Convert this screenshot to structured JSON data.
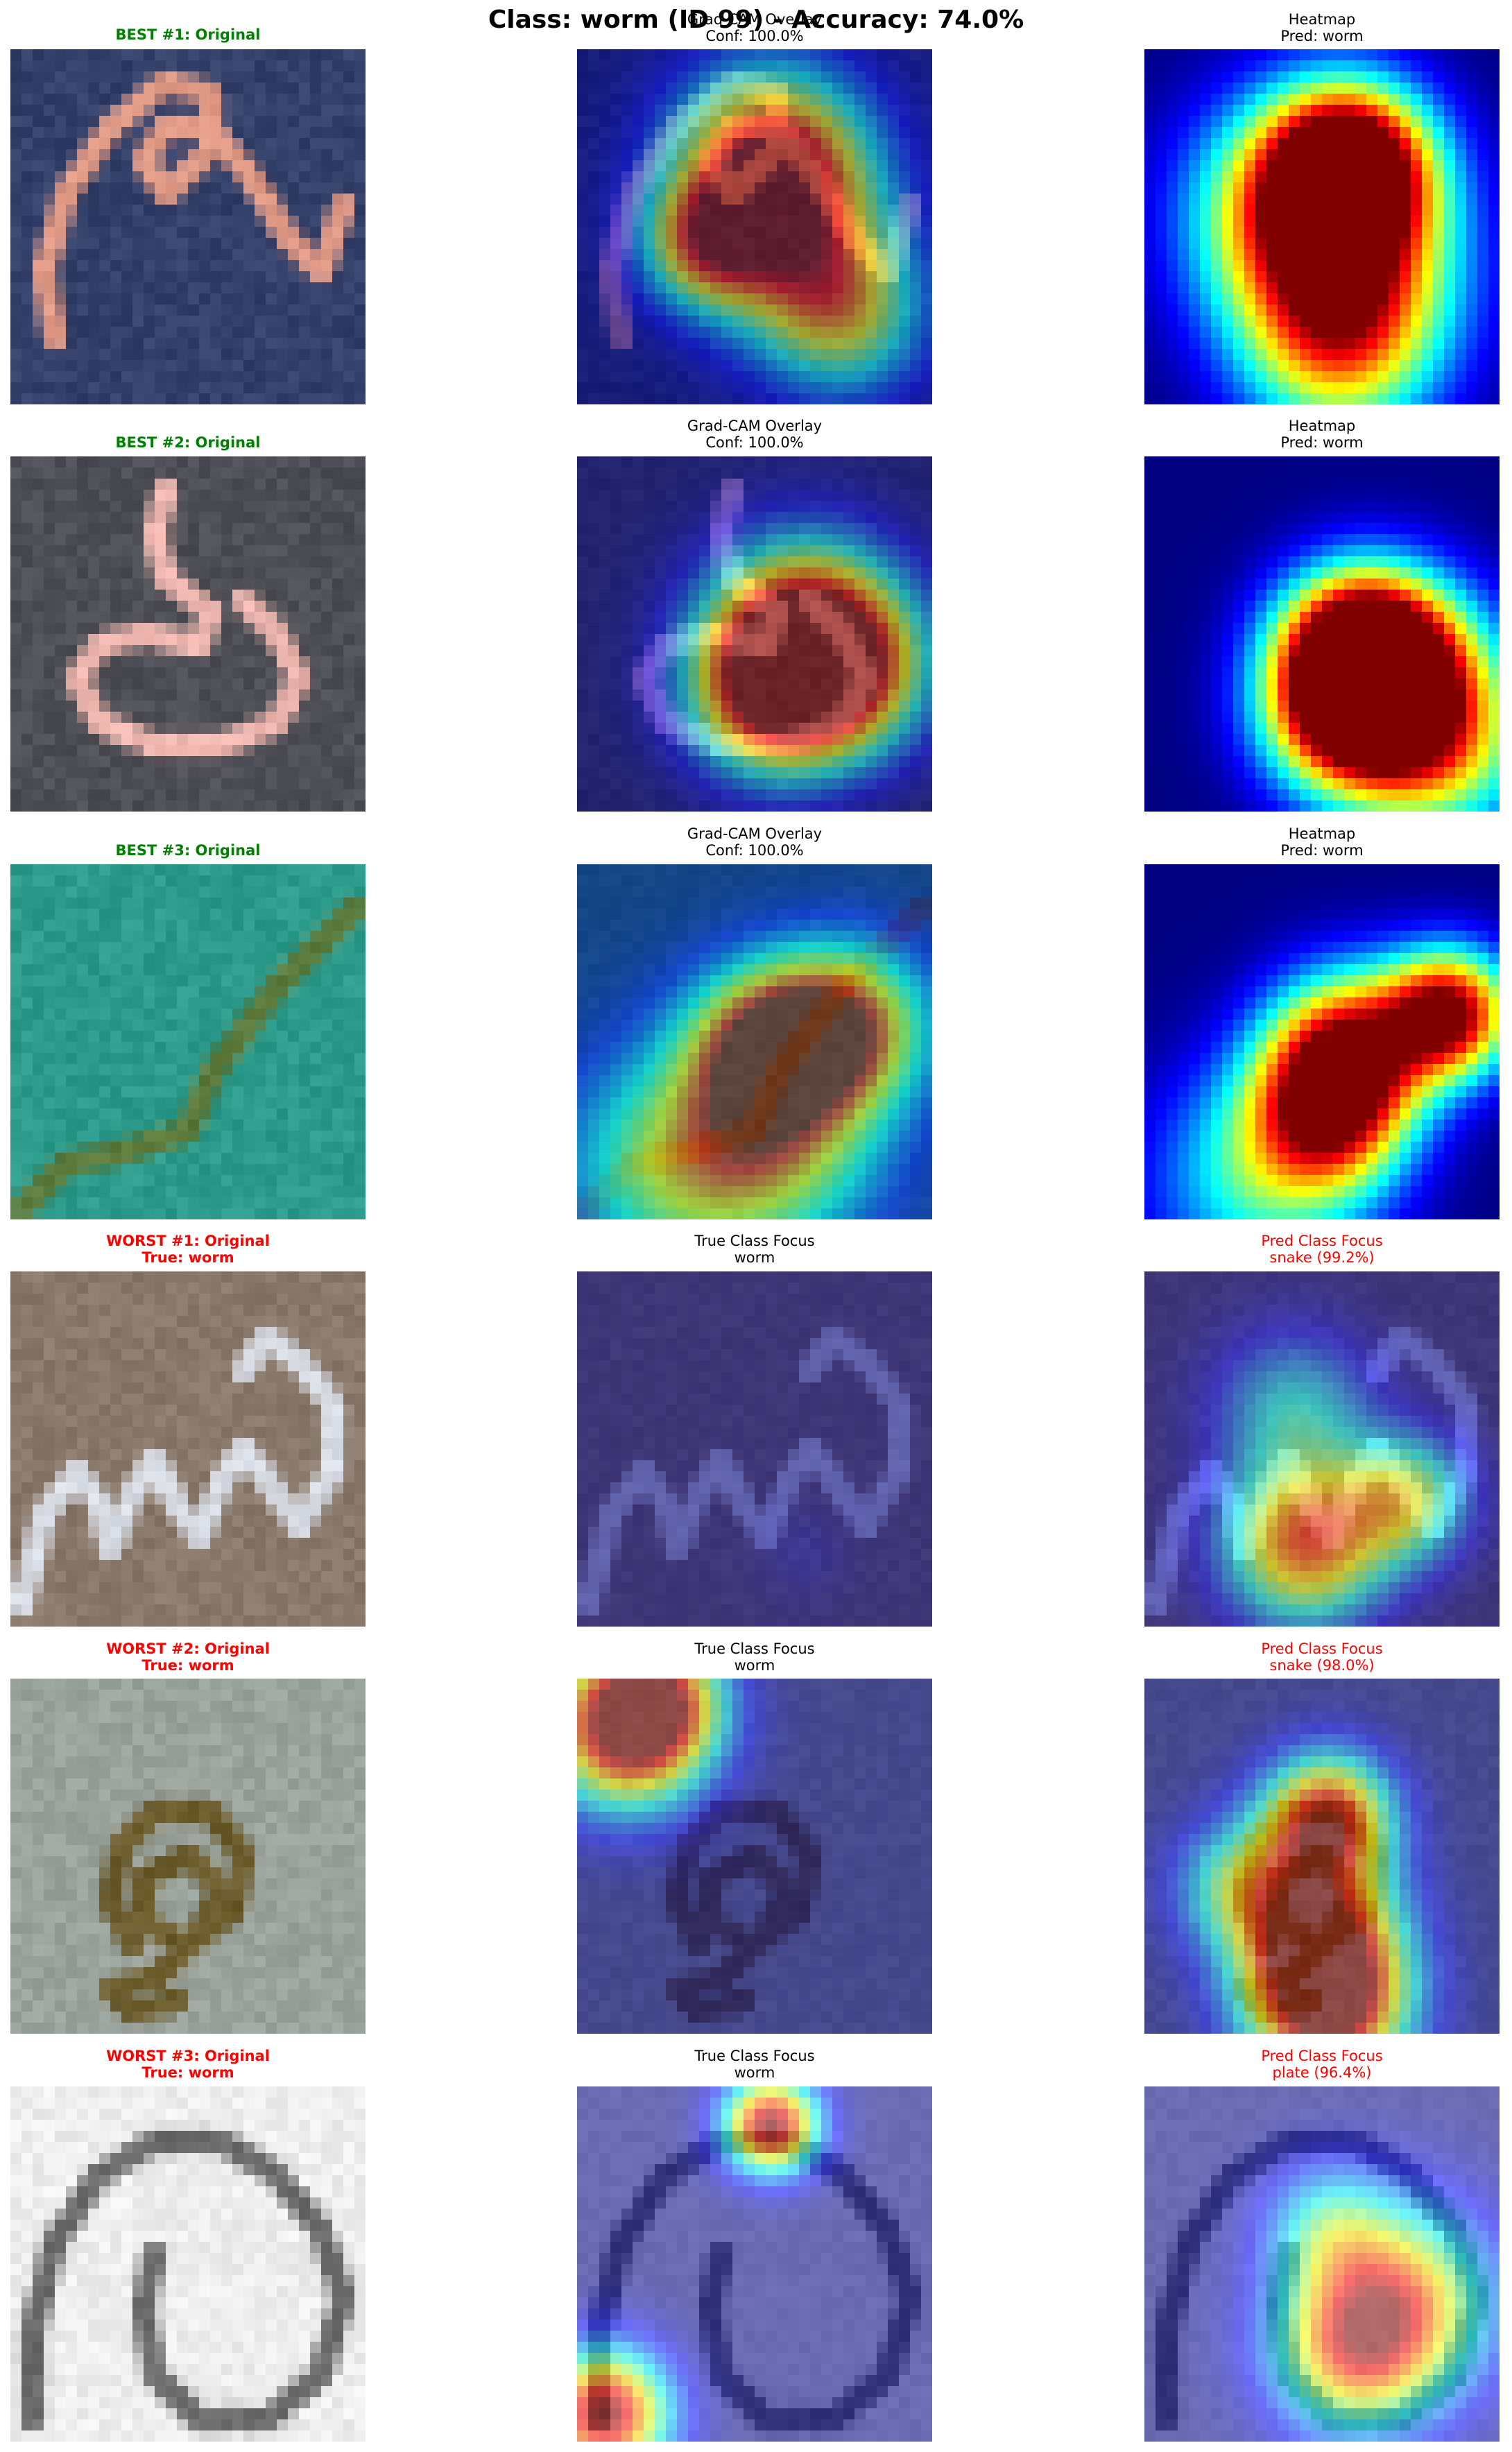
{
  "figure": {
    "suptitle": "Class: worm (ID 99) - Accuracy: 74.0%"
  },
  "rows": [
    {
      "kind": "best",
      "original": {
        "line1": "BEST #1: Original",
        "line2": ""
      },
      "overlay": {
        "line1": "Grad-CAM Overlay",
        "line2": "Conf: 100.0%"
      },
      "third": {
        "line1": "Heatmap",
        "line2": "Pred: worm"
      },
      "scene": {
        "bg": "#33406a",
        "worm": "#e19a86",
        "shape": "spiral"
      }
    },
    {
      "kind": "best",
      "original": {
        "line1": "BEST #2: Original",
        "line2": ""
      },
      "overlay": {
        "line1": "Grad-CAM Overlay",
        "line2": "Conf: 100.0%"
      },
      "third": {
        "line1": "Heatmap",
        "line2": "Pred: worm"
      },
      "scene": {
        "bg": "#4e4e56",
        "worm": "#f0b8b0",
        "shape": "s-curve"
      }
    },
    {
      "kind": "best",
      "original": {
        "line1": "BEST #3: Original",
        "line2": ""
      },
      "overlay": {
        "line1": "Grad-CAM Overlay",
        "line2": "Conf: 100.0%"
      },
      "third": {
        "line1": "Heatmap",
        "line2": "Pred: worm"
      },
      "scene": {
        "bg": "#2d9b8b",
        "worm": "#5e7a3a",
        "shape": "diagonal"
      }
    },
    {
      "kind": "worst",
      "original": {
        "line1": "WORST #1: Original",
        "line2": "True: worm"
      },
      "overlay": {
        "line1": "True Class Focus",
        "line2": "worm"
      },
      "third": {
        "line1": "Pred Class Focus",
        "line2": "snake (99.2%)"
      },
      "scene": {
        "bg": "#8a786a",
        "worm": "#d9dde6",
        "shape": "zigzag"
      }
    },
    {
      "kind": "worst",
      "original": {
        "line1": "WORST #2: Original",
        "line2": "True: worm"
      },
      "overlay": {
        "line1": "True Class Focus",
        "line2": "worm"
      },
      "third": {
        "line1": "Pred Class Focus",
        "line2": "snake (98.0%)"
      },
      "scene": {
        "bg": "#9aa29c",
        "worm": "#6b5a2a",
        "shape": "coil"
      }
    },
    {
      "kind": "worst",
      "original": {
        "line1": "WORST #3: Original",
        "line2": "True: worm"
      },
      "overlay": {
        "line1": "True Class Focus",
        "line2": "worm"
      },
      "third": {
        "line1": "Pred Class Focus",
        "line2": "plate (96.4%)"
      },
      "scene": {
        "bg": "#eeeeee",
        "worm": "#6a6a6a",
        "shape": "hook"
      }
    }
  ]
}
